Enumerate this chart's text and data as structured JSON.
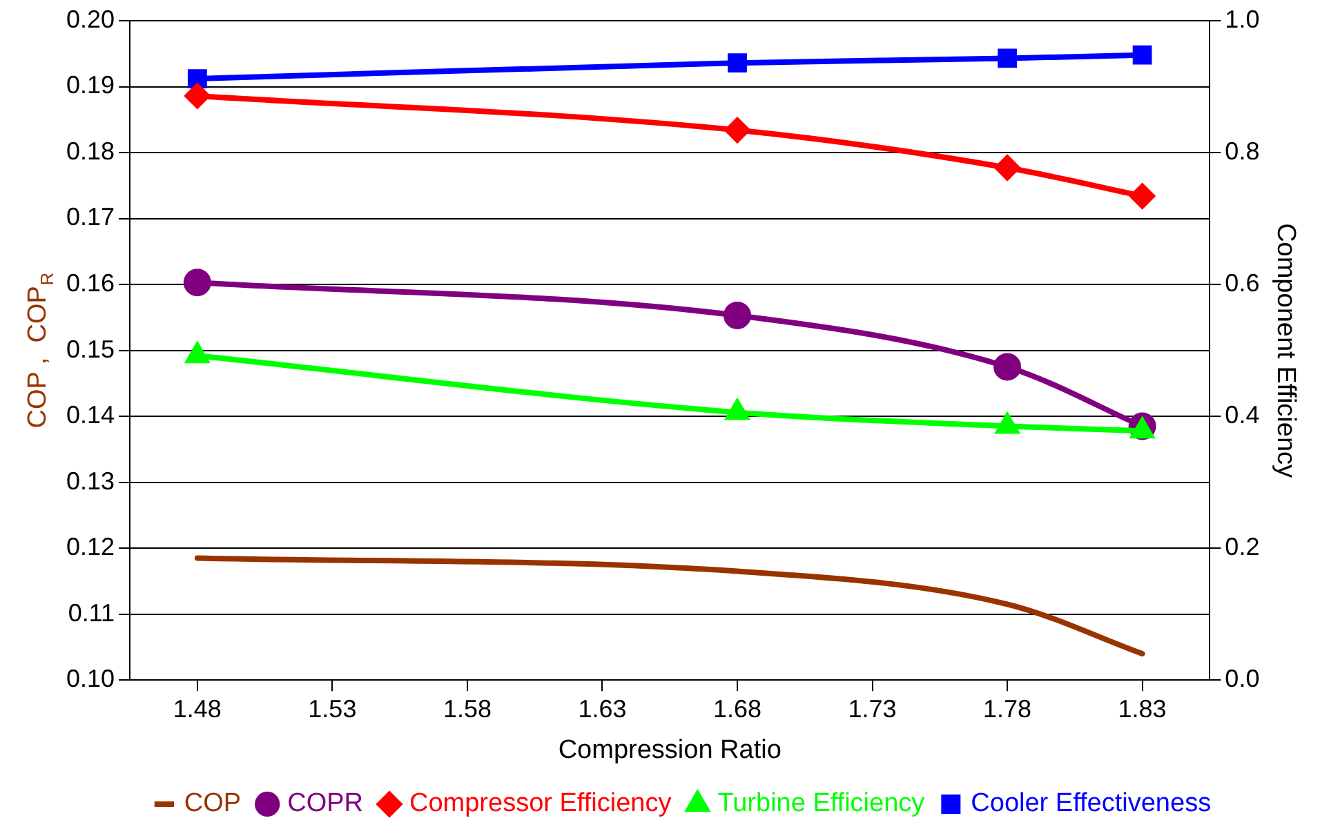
{
  "chart_data": {
    "type": "line",
    "xlabel": "Compression Ratio",
    "ylabel": "COP ,  COP$_{R}$",
    "y2label": "Component Efficiency",
    "x": [
      1.48,
      1.68,
      1.78,
      1.83
    ],
    "xlim": [
      1.455,
      1.855
    ],
    "xticks": [
      1.48,
      1.53,
      1.58,
      1.63,
      1.68,
      1.73,
      1.78,
      1.83
    ],
    "ylim": [
      0.1,
      0.2
    ],
    "yticks": [
      {
        "value": 0.1,
        "label": "0.10"
      },
      0.11,
      0.12,
      0.13,
      0.14,
      0.15,
      0.16,
      0.17,
      0.18,
      0.19,
      {
        "value": 0.2,
        "label": "0.20"
      }
    ],
    "y2lim": [
      0,
      1
    ],
    "y2ticks": [
      {
        "value": 0,
        "label": "0.0"
      },
      0.2,
      0.4,
      0.6,
      0.8,
      {
        "value": 1,
        "label": "1.0"
      }
    ],
    "grid": "y",
    "legend": "bottom",
    "series": [
      {
        "name": "COP",
        "color": "#993300",
        "marker": "none",
        "values": [
          0.1185,
          0.1165,
          0.1115,
          0.104
        ]
      },
      {
        "name": "COPR",
        "color": "#800080",
        "marker": "circle",
        "values": [
          0.1603,
          0.1553,
          0.1475,
          0.1385
        ]
      },
      {
        "name": "Compressor Efficiency",
        "color": "#ff0000",
        "marker": "diamond",
        "axis": "y2",
        "values": [
          0.886,
          0.834,
          0.777,
          0.734
        ]
      },
      {
        "name": "Turbine Efficiency",
        "color": "#00ff00",
        "marker": "triangle",
        "axis": "y2",
        "values": [
          0.492,
          0.406,
          0.385,
          0.378
        ]
      },
      {
        "name": "Cooler Effectiveness",
        "color": "#0000ff",
        "marker": "square",
        "axis": "y2",
        "values": [
          0.912,
          0.936,
          0.943,
          0.948
        ]
      }
    ]
  }
}
